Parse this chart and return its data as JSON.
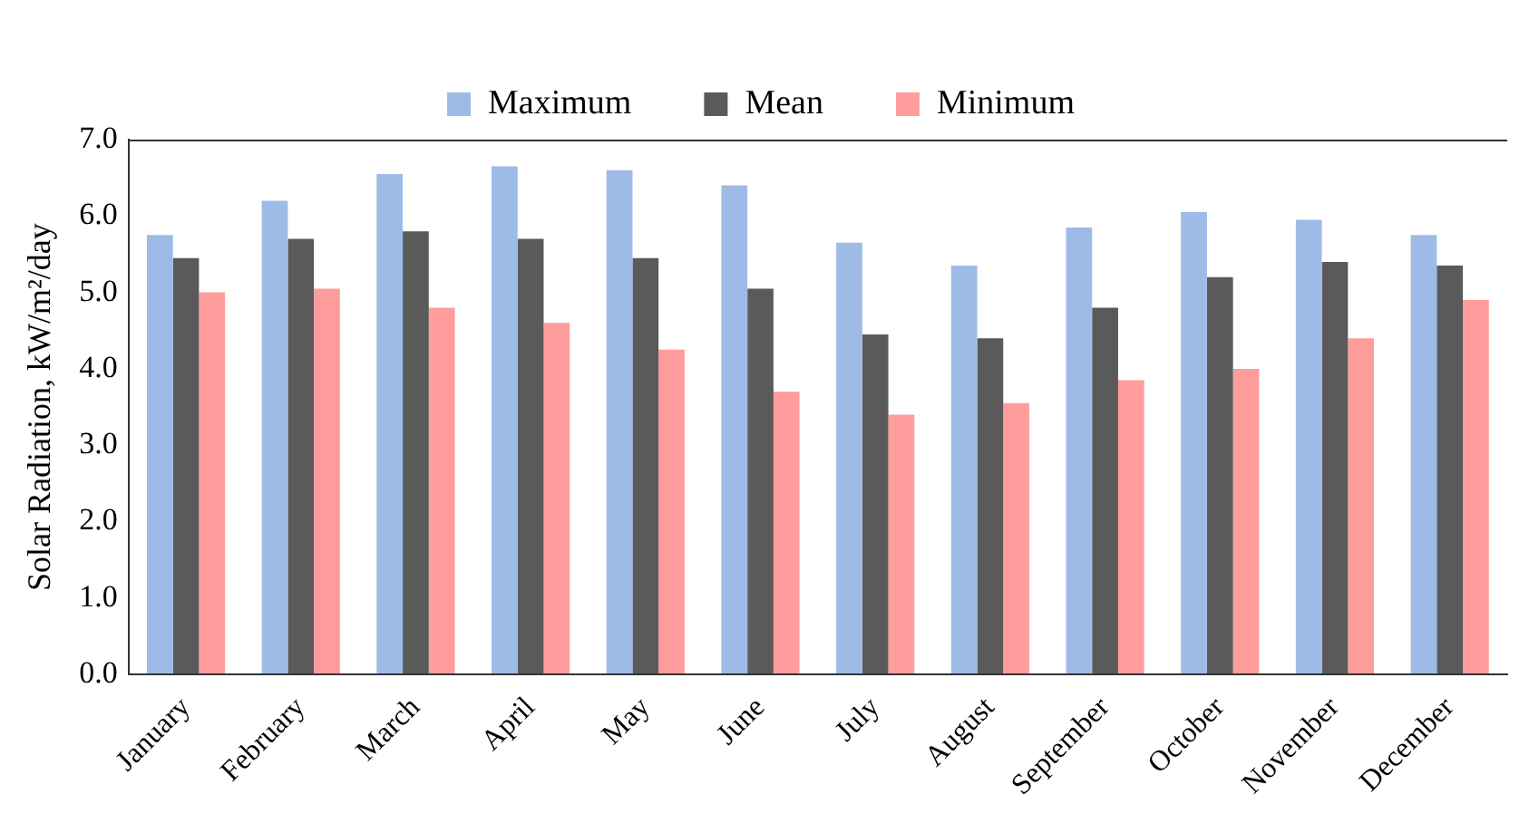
{
  "chart_data": {
    "type": "bar",
    "ylabel": "Solar Radiation, kW/m²/day",
    "categories": [
      "January",
      "February",
      "March",
      "April",
      "May",
      "June",
      "July",
      "August",
      "September",
      "October",
      "November",
      "December"
    ],
    "series": [
      {
        "name": "Maximum",
        "color": "#9dbbe6",
        "values": [
          5.75,
          6.2,
          6.55,
          6.65,
          6.6,
          6.4,
          5.65,
          5.35,
          5.85,
          6.05,
          5.95,
          5.75
        ]
      },
      {
        "name": "Mean",
        "color": "#5a5a5a",
        "values": [
          5.45,
          5.7,
          5.8,
          5.7,
          5.45,
          5.05,
          4.45,
          4.4,
          4.8,
          5.2,
          5.4,
          5.35
        ]
      },
      {
        "name": "Minimum",
        "color": "#ff9c9c",
        "values": [
          5.0,
          5.05,
          4.8,
          4.6,
          4.25,
          3.7,
          3.4,
          3.55,
          3.85,
          4.0,
          4.4,
          4.9
        ]
      }
    ],
    "ylim": [
      0,
      7
    ],
    "yticks": [
      {
        "value": 0,
        "label": "0.0"
      },
      {
        "value": 1,
        "label": "1.0"
      },
      {
        "value": 2,
        "label": "2.0"
      },
      {
        "value": 3,
        "label": "3.0"
      },
      {
        "value": 4,
        "label": "4.0"
      },
      {
        "value": 5,
        "label": "5.0"
      },
      {
        "value": 6,
        "label": "6.0"
      },
      {
        "value": 7,
        "label": "7.0"
      }
    ],
    "grid": false,
    "legend": "top"
  }
}
